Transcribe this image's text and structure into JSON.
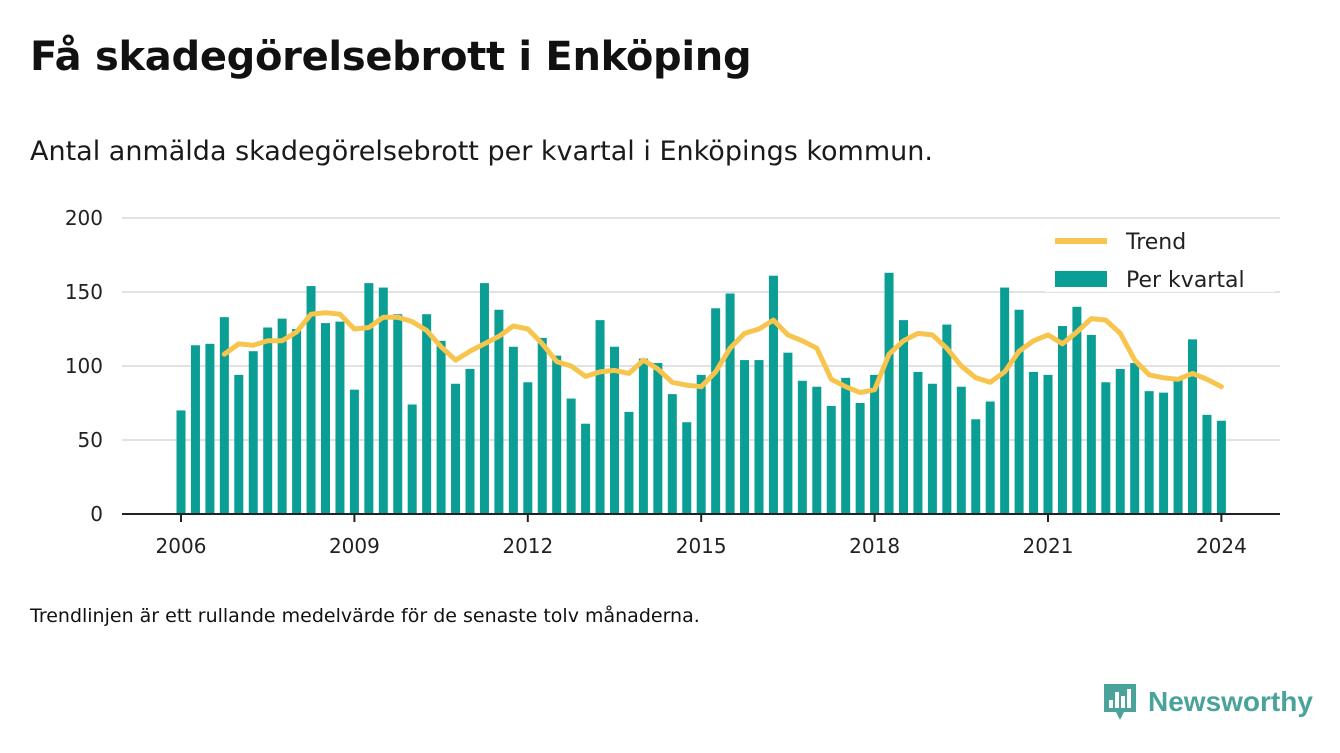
{
  "title": "Få skadegörelsebrott i Enköping",
  "subtitle": "Antal anmälda skadegörelsebrott per kvartal i Enköpings kommun.",
  "footnote": "Trendlinjen är ett rullande medelvärde för de senaste tolv månaderna.",
  "brand": {
    "name": "Newsworthy",
    "icon": "newsworthy-logo-icon",
    "color": "#4aa39a"
  },
  "colors": {
    "bars": "#0a9e94",
    "trend": "#f7c44d",
    "grid": "#d9d9d9",
    "axis": "#222222"
  },
  "chart_data": {
    "type": "bar",
    "start": "2006 Q1",
    "frequency": "quarterly",
    "ylim": [
      0,
      200
    ],
    "yticks": [
      0,
      50,
      100,
      150,
      200
    ],
    "xticks": [
      "2006",
      "2009",
      "2012",
      "2015",
      "2018",
      "2021",
      "2024"
    ],
    "grid": true,
    "legend_position": "top-right",
    "series": [
      {
        "name": "Per kvartal",
        "kind": "bar",
        "values": [
          70,
          114,
          115,
          133,
          94,
          110,
          126,
          132,
          125,
          154,
          129,
          130,
          84,
          156,
          153,
          135,
          74,
          135,
          117,
          88,
          98,
          156,
          138,
          113,
          89,
          119,
          107,
          78,
          61,
          131,
          113,
          69,
          105,
          102,
          81,
          62,
          94,
          139,
          149,
          104,
          104,
          161,
          109,
          90,
          86,
          73,
          92,
          75,
          94,
          163,
          131,
          96,
          88,
          128,
          86,
          64,
          76,
          153,
          138,
          96,
          94,
          127,
          140,
          121,
          89,
          98,
          102,
          83,
          82,
          92,
          118,
          67,
          63
        ]
      },
      {
        "name": "Trend",
        "kind": "line",
        "values": [
          null,
          null,
          null,
          108,
          115,
          114,
          117,
          117,
          123,
          135,
          136,
          135,
          125,
          126,
          133,
          133,
          130,
          124,
          113,
          104,
          110,
          115,
          120,
          127,
          125,
          115,
          103,
          100,
          93,
          96,
          97,
          95,
          104,
          98,
          89,
          87,
          86,
          96,
          112,
          122,
          125,
          131,
          121,
          117,
          112,
          91,
          86,
          82,
          84,
          108,
          117,
          122,
          121,
          112,
          100,
          92,
          89,
          96,
          110,
          117,
          121,
          115,
          123,
          132,
          131,
          122,
          104,
          94,
          92,
          91,
          95,
          91,
          86
        ]
      }
    ]
  }
}
